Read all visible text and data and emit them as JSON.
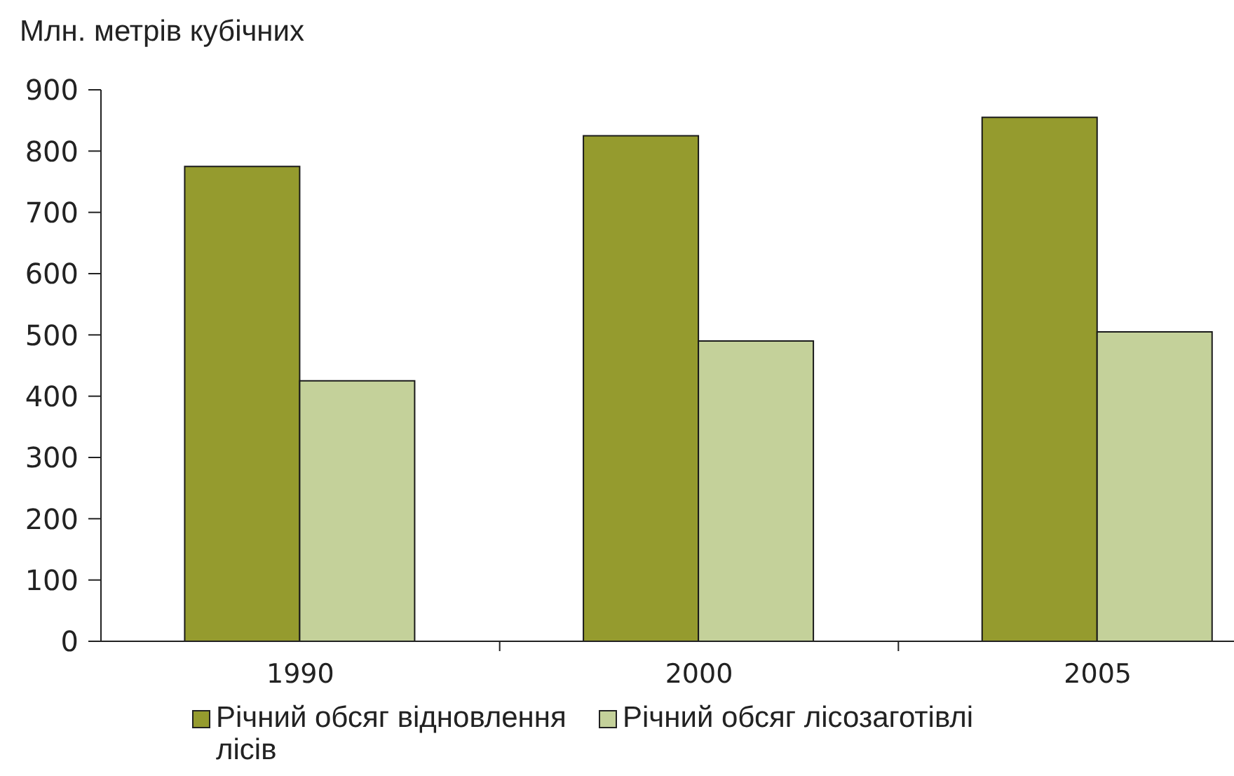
{
  "chart_data": {
    "type": "bar",
    "ylabel": "Млн. метрів кубічних",
    "categories": [
      "1990",
      "2000",
      "2005"
    ],
    "series": [
      {
        "name": "Річний обсяг відновлення лісів",
        "color": "#959b2e",
        "values": [
          775,
          825,
          855
        ]
      },
      {
        "name": "Річний обсяг лісозаготівлі",
        "color": "#c4d19a",
        "values": [
          425,
          490,
          505
        ]
      }
    ],
    "ylim": [
      0,
      900
    ],
    "yticks": [
      0,
      100,
      200,
      300,
      400,
      500,
      600,
      700,
      800,
      900
    ],
    "legend": "bottom"
  }
}
